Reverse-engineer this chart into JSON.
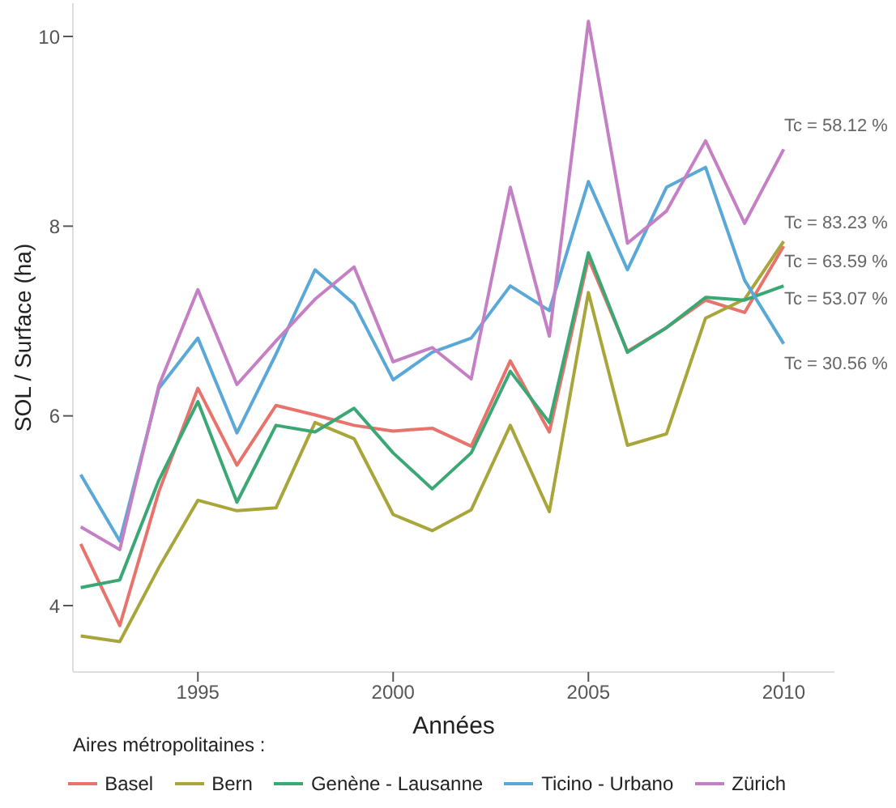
{
  "chart_data": {
    "type": "line",
    "xlabel": "Années",
    "ylabel": "SOL / Surface (ha)",
    "legend_title": "Aires métropolitaines :",
    "legend": "bottom",
    "grid": false,
    "marker": "none",
    "line_style": "solid",
    "x": [
      1992,
      1993,
      1994,
      1995,
      1996,
      1997,
      1998,
      1999,
      2000,
      2001,
      2002,
      2003,
      2004,
      2005,
      2006,
      2007,
      2008,
      2009,
      2010
    ],
    "xlim": [
      1991.8,
      2011.3
    ],
    "xticks": [
      1995,
      2000,
      2005,
      2010
    ],
    "ylim": [
      3.3,
      10.35
    ],
    "yticks": [
      4,
      6,
      8,
      10
    ],
    "series": [
      {
        "name": "Basel",
        "color": "#e8736c",
        "values": [
          4.65,
          3.79,
          5.2,
          6.29,
          5.48,
          6.11,
          6.01,
          5.9,
          5.84,
          5.87,
          5.68,
          6.58,
          5.83,
          7.66,
          6.68,
          6.93,
          7.22,
          7.09,
          7.79
        ]
      },
      {
        "name": "Bern",
        "color": "#a8a53a",
        "values": [
          3.68,
          3.62,
          4.4,
          5.11,
          5.0,
          5.03,
          5.93,
          5.76,
          4.96,
          4.79,
          5.01,
          5.9,
          4.99,
          7.3,
          5.69,
          5.81,
          7.03,
          7.23,
          7.84
        ]
      },
      {
        "name": "Genène - Lausanne",
        "color": "#3aa874",
        "values": [
          4.19,
          4.27,
          5.32,
          6.15,
          5.09,
          5.9,
          5.83,
          6.08,
          5.61,
          5.23,
          5.61,
          6.47,
          5.93,
          7.72,
          6.67,
          6.93,
          7.25,
          7.22,
          7.37
        ]
      },
      {
        "name": "Ticino - Urbano",
        "color": "#5aa8d8",
        "values": [
          5.38,
          4.68,
          6.29,
          6.82,
          5.82,
          6.65,
          7.54,
          7.18,
          6.38,
          6.67,
          6.82,
          7.37,
          7.11,
          8.47,
          7.54,
          8.41,
          8.62,
          7.43,
          6.76
        ]
      },
      {
        "name": "Zürich",
        "color": "#c57fc5",
        "values": [
          4.83,
          4.59,
          6.32,
          7.33,
          6.33,
          6.79,
          7.23,
          7.57,
          6.57,
          6.72,
          6.39,
          8.41,
          6.84,
          10.16,
          7.82,
          8.16,
          8.9,
          8.03,
          8.81
        ]
      }
    ],
    "annotations": [
      "Tc = 58.12 %",
      "Tc = 83.23 %",
      "Tc = 63.59 %",
      "Tc = 53.07 %",
      "Tc = 30.56 %"
    ]
  }
}
